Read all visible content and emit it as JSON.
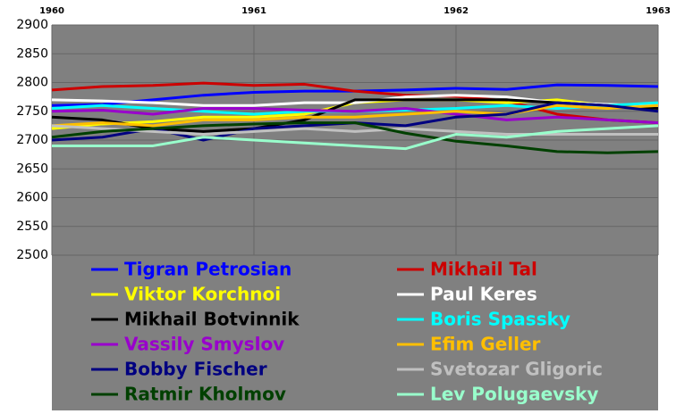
{
  "chart_data": {
    "type": "line",
    "x": [
      1960,
      1960.25,
      1960.5,
      1960.75,
      1961,
      1961.25,
      1961.5,
      1961.75,
      1962,
      1962.25,
      1962.5,
      1962.75,
      1963
    ],
    "xlim": [
      1960,
      1963
    ],
    "xticks": [
      1960,
      1961,
      1962,
      1963
    ],
    "ylim": [
      2500,
      2900
    ],
    "yticks": [
      2500,
      2550,
      2600,
      2650,
      2700,
      2750,
      2800,
      2850,
      2900
    ],
    "grid": true,
    "series": [
      {
        "name": "Tigran Petrosian",
        "color": "#0000ff",
        "values": [
          2760,
          2762,
          2770,
          2778,
          2783,
          2785,
          2785,
          2787,
          2790,
          2788,
          2796,
          2795,
          2793
        ]
      },
      {
        "name": "Mikhail Tal",
        "color": "#cc0000",
        "values": [
          2787,
          2793,
          2795,
          2799,
          2795,
          2797,
          2785,
          2778,
          2776,
          2768,
          2745,
          2735,
          2730
        ]
      },
      {
        "name": "Viktor Korchnoi",
        "color": "#ffff00",
        "values": [
          2720,
          2728,
          2732,
          2740,
          2740,
          2745,
          2765,
          2770,
          2770,
          2765,
          2770,
          2760,
          2755
        ]
      },
      {
        "name": "Paul Keres",
        "color": "#ffffff",
        "values": [
          2770,
          2768,
          2765,
          2760,
          2760,
          2765,
          2765,
          2775,
          2778,
          2775,
          2765,
          2762,
          2760
        ]
      },
      {
        "name": "Mikhail Botvinnik",
        "color": "#000000",
        "values": [
          2740,
          2735,
          2720,
          2715,
          2720,
          2735,
          2770,
          2770,
          2770,
          2770,
          2765,
          2760,
          2755
        ]
      },
      {
        "name": "Boris Spassky",
        "color": "#00ffff",
        "values": [
          2755,
          2760,
          2755,
          2750,
          2745,
          2750,
          2750,
          2752,
          2755,
          2760,
          2755,
          2760,
          2765
        ]
      },
      {
        "name": "Vassily Smyslov",
        "color": "#9900cc",
        "values": [
          2750,
          2752,
          2745,
          2755,
          2755,
          2752,
          2750,
          2755,
          2745,
          2735,
          2740,
          2735,
          2730
        ]
      },
      {
        "name": "Efim Geller",
        "color": "#ffbf00",
        "values": [
          2725,
          2730,
          2725,
          2735,
          2735,
          2740,
          2740,
          2745,
          2750,
          2745,
          2760,
          2755,
          2760
        ]
      },
      {
        "name": "Bobby Fischer",
        "color": "#000080",
        "values": [
          2700,
          2705,
          2720,
          2700,
          2720,
          2725,
          2730,
          2725,
          2740,
          2745,
          2765,
          2760,
          2750
        ]
      },
      {
        "name": "Svetozar Gligoric",
        "color": "#c0c0c0",
        "values": [
          2725,
          2720,
          2715,
          2710,
          2715,
          2720,
          2715,
          2720,
          2715,
          2710,
          2710,
          2710,
          2710
        ]
      },
      {
        "name": "Ratmir Kholmov",
        "color": "#004000",
        "values": [
          2705,
          2715,
          2720,
          2725,
          2728,
          2730,
          2730,
          2712,
          2698,
          2690,
          2680,
          2678,
          2680
        ]
      },
      {
        "name": "Lev Polugaevsky",
        "color": "#99ffcc",
        "values": [
          2690,
          2690,
          2690,
          2705,
          2700,
          2695,
          2690,
          2685,
          2710,
          2705,
          2715,
          2720,
          2725
        ]
      }
    ]
  }
}
